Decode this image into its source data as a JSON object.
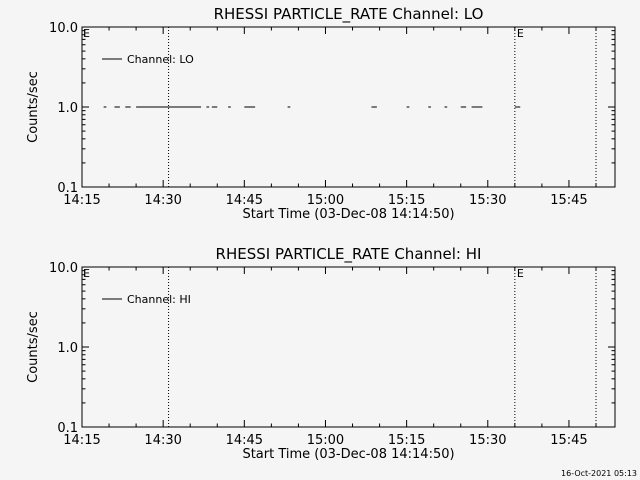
{
  "chart_data": [
    {
      "type": "line",
      "title": "RHESSI PARTICLE_RATE Channel: LO",
      "xlabel": "Start Time (03-Dec-08 14:14:50)",
      "ylabel": "Counts/sec",
      "yscale": "log",
      "ylim": [
        0.1,
        10.0
      ],
      "xlim": [
        "14:15",
        "15:57"
      ],
      "yticks": [
        "10.0",
        "1.0",
        "0.1"
      ],
      "xticks": [
        "14:15",
        "14:30",
        "14:45",
        "15:00",
        "15:15",
        "15:30",
        "15:45"
      ],
      "legend": {
        "position": "top-left",
        "entries": [
          "Channel: LO"
        ]
      },
      "markers": [
        {
          "time": "14:31",
          "label": ""
        },
        {
          "time": "15:35",
          "label": "E"
        },
        {
          "time": "15:50",
          "label": ""
        }
      ],
      "corner_label": "E",
      "series": [
        {
          "name": "Channel: LO",
          "value": 1.0,
          "segments": [
            [
              "14:19",
              "14:19.5"
            ],
            [
              "14:21",
              "14:22"
            ],
            [
              "14:23",
              "14:24"
            ],
            [
              "14:25",
              "14:37"
            ],
            [
              "14:38",
              "14:38.5"
            ],
            [
              "14:39",
              "14:40"
            ],
            [
              "14:42",
              "14:42.5"
            ],
            [
              "14:45",
              "14:47"
            ],
            [
              "14:53",
              "14:53.5"
            ],
            [
              "15:08.5",
              "15:09.5"
            ],
            [
              "15:15",
              "15:15.5"
            ],
            [
              "15:19",
              "15:19.5"
            ],
            [
              "15:22",
              "15:22.5"
            ],
            [
              "15:25",
              "15:26"
            ],
            [
              "15:27",
              "15:29"
            ],
            [
              "15:35",
              "15:36"
            ]
          ]
        }
      ]
    },
    {
      "type": "line",
      "title": "RHESSI PARTICLE_RATE Channel: HI",
      "xlabel": "Start Time (03-Dec-08 14:14:50)",
      "ylabel": "Counts/sec",
      "yscale": "log",
      "ylim": [
        0.1,
        10.0
      ],
      "xlim": [
        "14:15",
        "15:57"
      ],
      "yticks": [
        "10.0",
        "1.0",
        "0.1"
      ],
      "xticks": [
        "14:15",
        "14:30",
        "14:45",
        "15:00",
        "15:15",
        "15:30",
        "15:45"
      ],
      "legend": {
        "position": "top-left",
        "entries": [
          "Channel: HI"
        ]
      },
      "markers": [
        {
          "time": "14:31",
          "label": ""
        },
        {
          "time": "15:35",
          "label": "E"
        },
        {
          "time": "15:50",
          "label": ""
        }
      ],
      "corner_label": "E",
      "series": [
        {
          "name": "Channel: HI",
          "value": 1.0,
          "segments": []
        }
      ]
    }
  ],
  "timestamp": "16-Oct-2021 05:13"
}
